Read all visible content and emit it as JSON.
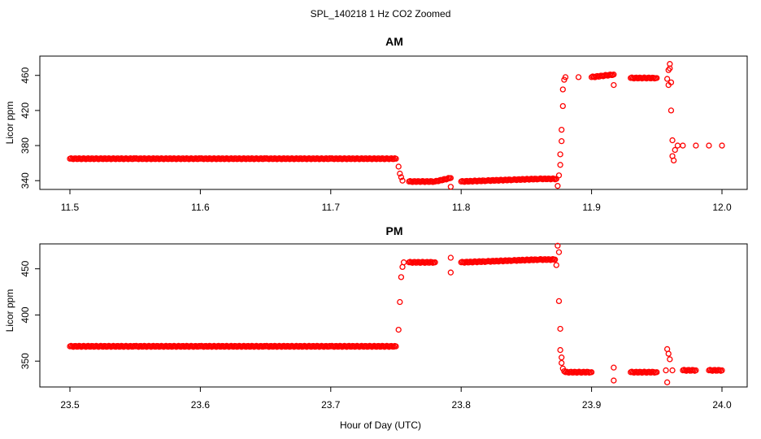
{
  "figure": {
    "title": "SPL_140218  1 Hz CO2 Zoomed",
    "xlabel": "Hour of Day (UTC)"
  },
  "point_color": "#ff0000",
  "chart_data": [
    {
      "type": "scatter",
      "title": "AM",
      "xlabel": "Hour of Day (UTC)",
      "ylabel": "Licor ppm",
      "xlim": [
        11.5,
        12.0
      ],
      "ylim": [
        330,
        482
      ],
      "xticks": [
        11.5,
        11.6,
        11.7,
        11.8,
        11.9,
        12.0
      ],
      "xtick_labels": [
        "11.5",
        "11.6",
        "11.7",
        "11.8",
        "11.9",
        "12.0"
      ],
      "yticks": [
        340,
        380,
        420,
        460
      ],
      "ytick_labels": [
        "340",
        "380",
        "420",
        "460"
      ],
      "grid": false,
      "series": [
        {
          "values_note": "",
          "x": [
            11.5,
            11.55,
            11.6,
            11.65,
            11.7,
            11.75,
            11.752,
            11.753,
            11.754,
            11.755,
            11.76,
            11.78,
            11.792,
            11.792,
            11.8,
            11.82,
            11.84,
            11.86,
            11.873,
            11.874,
            11.875,
            11.876,
            11.876,
            11.877,
            11.877,
            11.878,
            11.878,
            11.879,
            11.88,
            11.89,
            11.9,
            11.917,
            11.917,
            11.93,
            11.95,
            11.958,
            11.959,
            11.959,
            11.96,
            11.96,
            11.961,
            11.961,
            11.962,
            11.962,
            11.963,
            11.964,
            11.966,
            11.97,
            11.98,
            11.99,
            12.0
          ],
          "y": [
            365,
            365,
            365,
            365,
            365,
            365,
            356,
            348,
            344,
            340,
            339,
            339,
            343,
            333,
            339,
            340,
            341,
            342,
            342,
            334,
            346,
            358,
            370,
            385,
            398,
            425,
            444,
            455,
            458,
            458,
            458,
            461,
            449,
            457,
            457,
            456,
            449,
            466,
            473,
            468,
            452,
            420,
            386,
            368,
            363,
            375,
            380,
            380,
            380,
            380,
            380
          ]
        }
      ]
    },
    {
      "type": "scatter",
      "title": "PM",
      "xlabel": "Hour of Day (UTC)",
      "ylabel": "Licor ppm",
      "xlim": [
        23.5,
        24.0
      ],
      "ylim": [
        322,
        477
      ],
      "xticks": [
        23.5,
        23.6,
        23.7,
        23.8,
        23.9,
        24.0
      ],
      "xtick_labels": [
        "23.5",
        "23.6",
        "23.7",
        "23.8",
        "23.9",
        "24.0"
      ],
      "yticks": [
        350,
        400,
        450
      ],
      "ytick_labels": [
        "350",
        "400",
        "450"
      ],
      "grid": false,
      "series": [
        {
          "values_note": "",
          "x": [
            23.5,
            23.55,
            23.6,
            23.65,
            23.7,
            23.75,
            23.752,
            23.753,
            23.754,
            23.755,
            23.756,
            23.76,
            23.78,
            23.792,
            23.792,
            23.8,
            23.82,
            23.84,
            23.86,
            23.872,
            23.873,
            23.874,
            23.875,
            23.875,
            23.876,
            23.876,
            23.877,
            23.877,
            23.878,
            23.879,
            23.88,
            23.9,
            23.917,
            23.917,
            23.93,
            23.95,
            23.957,
            23.958,
            23.958,
            23.959,
            23.96,
            23.962,
            23.97,
            23.98,
            23.99,
            24.0
          ],
          "y": [
            366,
            366,
            366,
            366,
            366,
            366,
            384,
            414,
            441,
            452,
            457,
            457,
            457,
            462,
            446,
            457,
            458,
            459,
            460,
            460,
            454,
            475,
            468,
            415,
            385,
            362,
            354,
            348,
            342,
            339,
            338,
            338,
            343,
            329,
            338,
            338,
            340,
            327,
            363,
            358,
            352,
            340,
            340,
            340,
            340,
            340
          ]
        }
      ]
    }
  ]
}
